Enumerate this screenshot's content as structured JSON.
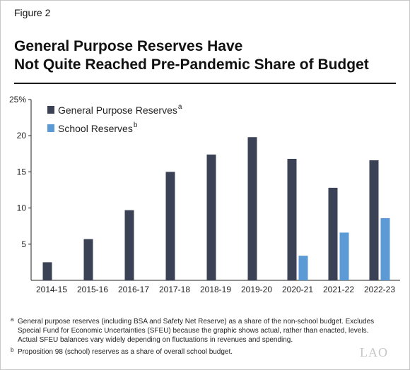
{
  "figure_label": "Figure 2",
  "title_line1": "General Purpose Reserves Have",
  "title_line2": "Not Quite Reached Pre-Pandemic Share of Budget",
  "chart_data": {
    "type": "bar",
    "categories": [
      "2014-15",
      "2015-16",
      "2016-17",
      "2017-18",
      "2018-19",
      "2019-20",
      "2020-21",
      "2021-22",
      "2022-23"
    ],
    "series": [
      {
        "name": "General Purpose Reserves",
        "superscript": "a",
        "color": "#3b4256",
        "values": [
          2.5,
          5.7,
          9.7,
          15.0,
          17.4,
          19.8,
          16.8,
          12.8,
          16.6
        ]
      },
      {
        "name": "School Reserves",
        "superscript": "b",
        "color": "#5c9ad6",
        "values": [
          null,
          null,
          null,
          null,
          null,
          null,
          3.4,
          6.6,
          8.6
        ]
      }
    ],
    "y_ticks": [
      "5",
      "10",
      "15",
      "20",
      "25%"
    ],
    "y_tick_values": [
      5,
      10,
      15,
      20,
      25
    ],
    "ylim": [
      0,
      25
    ],
    "legend_position": "top-left",
    "grid": false
  },
  "footnotes": [
    {
      "marker": "a",
      "text": "General purpose reserves (including BSA and Safety Net Reserve) as a share of the non-school budget. Excludes Special Fund for Economic Uncertainties (SFEU) because the graphic shows actual, rather than enacted, levels. Actual SFEU balances vary widely depending on fluctuations in revenues and spending."
    },
    {
      "marker": "b",
      "text": "Proposition 98 (school) reserves as a share of overall school budget."
    }
  ],
  "logo_text": "LAO"
}
